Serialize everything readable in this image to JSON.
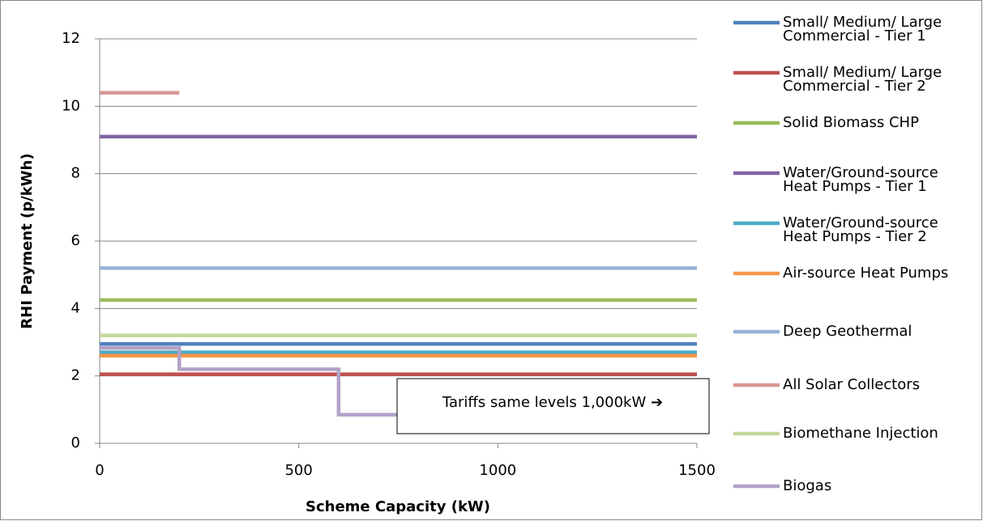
{
  "chart_data": {
    "type": "line",
    "x_label": "Scheme Capacity (kW)",
    "y_label": "RHI Payment (p/kWh)",
    "xlim": [
      0,
      1500
    ],
    "xticks": [
      0,
      500,
      1000,
      1500
    ],
    "ylim": [
      0,
      12
    ],
    "yticks": [
      0,
      2,
      4,
      6,
      8,
      10,
      12
    ],
    "grid": true,
    "annotation": "Tariffs same levels 1,000kW ➔",
    "series": [
      {
        "name": "Small/ Medium/ Large Commercial - Tier 1",
        "color": "#4f81bd",
        "x": [
          0,
          1500
        ],
        "values": [
          2.95,
          2.95
        ]
      },
      {
        "name": "Small/ Medium/ Large Commercial - Tier 2",
        "color": "#c0504d",
        "x": [
          0,
          1500
        ],
        "values": [
          2.05,
          2.05
        ]
      },
      {
        "name": "Solid Biomass CHP",
        "color": "#9bbb59",
        "x": [
          0,
          1500
        ],
        "values": [
          4.25,
          4.25
        ]
      },
      {
        "name": "Water/Ground-source Heat Pumps - Tier 1",
        "color": "#8064a2",
        "x": [
          0,
          1500
        ],
        "values": [
          9.1,
          9.1
        ]
      },
      {
        "name": "Water/Ground-source Heat Pumps - Tier 2",
        "color": "#4bacc6",
        "x": [
          0,
          1500
        ],
        "values": [
          2.7,
          2.7
        ]
      },
      {
        "name": "Air-source Heat Pumps",
        "color": "#f79646",
        "x": [
          0,
          1500
        ],
        "values": [
          2.6,
          2.6
        ]
      },
      {
        "name": "Deep Geothermal",
        "color": "#95b3d7",
        "x": [
          0,
          1500
        ],
        "values": [
          5.2,
          5.2
        ]
      },
      {
        "name": "All Solar Collectors",
        "color": "#d99694",
        "x": [
          0,
          200
        ],
        "values": [
          10.4,
          10.4
        ]
      },
      {
        "name": "Biomethane Injection",
        "color": "#c3d69b",
        "x": [
          0,
          1500
        ],
        "values": [
          3.2,
          3.2
        ]
      },
      {
        "name": "Biogas",
        "color": "#b2a2c7",
        "x": [
          0,
          200,
          200,
          600,
          600,
          1500
        ],
        "values": [
          2.83,
          2.83,
          2.2,
          2.2,
          0.85,
          0.85
        ]
      }
    ]
  }
}
